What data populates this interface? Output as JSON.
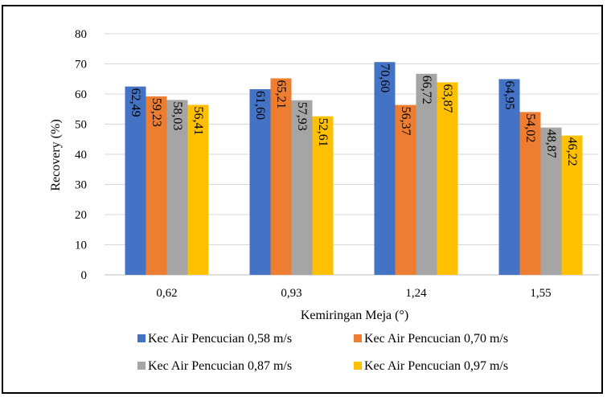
{
  "chart_data": {
    "type": "bar",
    "categories": [
      "0,62",
      "0,93",
      "1,24",
      "1,55"
    ],
    "series": [
      {
        "name": "Kec Air Pencucian 0,58 m/s",
        "color": "#4472c4",
        "values": [
          62.49,
          61.6,
          70.6,
          64.95
        ]
      },
      {
        "name": "Kec Air Pencucian 0,70 m/s",
        "color": "#ed7d31",
        "values": [
          59.23,
          65.21,
          56.37,
          54.02
        ]
      },
      {
        "name": "Kec Air Pencucian 0,87 m/s",
        "color": "#a5a5a5",
        "values": [
          58.03,
          57.93,
          66.72,
          48.87
        ]
      },
      {
        "name": "Kec Air Pencucian 0,97 m/s",
        "color": "#ffc000",
        "values": [
          56.41,
          52.61,
          63.87,
          46.22
        ]
      }
    ],
    "title": "",
    "xlabel": "Kemiringan Meja (°)",
    "ylabel": "Recovery (%)",
    "ylim": [
      0,
      80
    ],
    "yticks": [
      0,
      10,
      20,
      30,
      40,
      50,
      60,
      70,
      80
    ],
    "grid": true,
    "legend_position": "bottom",
    "decimal_separator": ","
  }
}
